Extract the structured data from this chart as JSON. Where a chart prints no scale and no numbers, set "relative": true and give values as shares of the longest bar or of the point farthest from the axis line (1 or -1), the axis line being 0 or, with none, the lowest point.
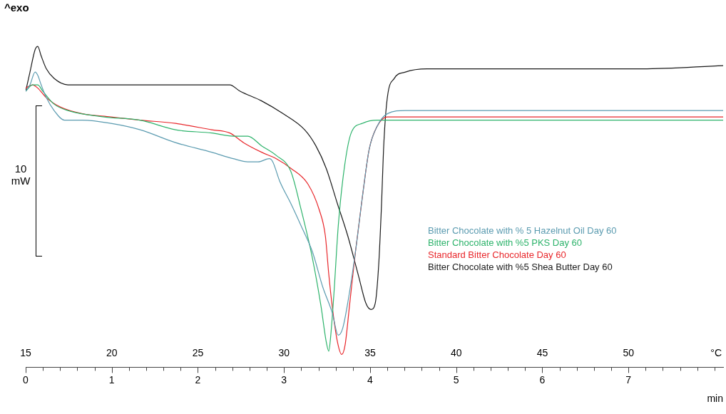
{
  "chart_data": {
    "type": "line",
    "relative": true,
    "xlabel": "min",
    "x2label": "°C",
    "xlim": [
      0,
      8.1
    ],
    "xticks": [
      0,
      {
        "value": 0.2,
        "label": null
      },
      {
        "value": 0.4,
        "label": null
      },
      {
        "value": 0.6,
        "label": null
      },
      {
        "value": 0.8,
        "label": null
      },
      1,
      {
        "value": 1.2,
        "label": null
      },
      {
        "value": 1.4,
        "label": null
      },
      {
        "value": 1.6,
        "label": null
      },
      {
        "value": 1.8,
        "label": null
      },
      2,
      {
        "value": 2.2,
        "label": null
      },
      {
        "value": 2.4,
        "label": null
      },
      {
        "value": 2.6,
        "label": null
      },
      {
        "value": 2.8,
        "label": null
      },
      3,
      {
        "value": 3.2,
        "label": null
      },
      {
        "value": 3.4,
        "label": null
      },
      {
        "value": 3.6,
        "label": null
      },
      {
        "value": 3.8,
        "label": null
      },
      4,
      {
        "value": 4.2,
        "label": null
      },
      {
        "value": 4.4,
        "label": null
      },
      {
        "value": 4.6,
        "label": null
      },
      {
        "value": 4.8,
        "label": null
      },
      5,
      {
        "value": 5.2,
        "label": null
      },
      {
        "value": 5.4,
        "label": null
      },
      {
        "value": 5.6,
        "label": null
      },
      {
        "value": 5.8,
        "label": null
      },
      6,
      {
        "value": 6.2,
        "label": null
      },
      {
        "value": 6.4,
        "label": null
      },
      {
        "value": 6.6,
        "label": null
      },
      {
        "value": 6.8,
        "label": null
      },
      7,
      {
        "value": 7.2,
        "label": null
      },
      {
        "value": 7.4,
        "label": null
      },
      {
        "value": 7.6,
        "label": null
      },
      {
        "value": 7.8,
        "label": null
      },
      {
        "value": 8.0,
        "label": null
      }
    ],
    "x2lim": [
      15,
      55.5
    ],
    "x2ticks": [
      15,
      20,
      25,
      30,
      35,
      40,
      45,
      50
    ],
    "grid": false,
    "legend": "right",
    "marker": "none",
    "line_style": "solid",
    "annotations": [
      "^exo",
      "10 mW"
    ],
    "series": [
      {
        "name": "Bitter Chocolate with % 5 Hazelnut Oil Day 60",
        "color": "#5b9bb0",
        "x": [
          0,
          0.05,
          0.11,
          0.14,
          0.18,
          0.24,
          0.33,
          0.45,
          0.66,
          0.99,
          1.33,
          1.74,
          2.16,
          2.41,
          2.58,
          2.7,
          2.83,
          2.87,
          2.95,
          3.08,
          3.2,
          3.33,
          3.45,
          3.56,
          3.63,
          3.68,
          3.74,
          3.83,
          3.91,
          3.99,
          4.08,
          4.2,
          4.41,
          5.49,
          7.16,
          8.1
        ],
        "values": [
          0.86,
          0.88,
          0.92,
          0.91,
          0.88,
          0.84,
          0.8,
          0.77,
          0.77,
          0.76,
          0.74,
          0.7,
          0.67,
          0.65,
          0.64,
          0.64,
          0.65,
          0.64,
          0.58,
          0.51,
          0.44,
          0.36,
          0.25,
          0.17,
          0.1,
          0.12,
          0.2,
          0.36,
          0.53,
          0.68,
          0.75,
          0.79,
          0.8,
          0.8,
          0.8,
          0.8
        ]
      },
      {
        "name": "Bitter Chocolate with %5 PKS Day 60",
        "color": "#2db36b",
        "x": [
          0,
          0.08,
          0.14,
          0.2,
          0.33,
          0.49,
          0.91,
          1.33,
          1.74,
          2.16,
          2.41,
          2.58,
          2.74,
          2.91,
          3.08,
          3.2,
          3.33,
          3.43,
          3.49,
          3.52,
          3.54,
          3.58,
          3.63,
          3.7,
          3.78,
          3.91,
          4.08,
          4.66,
          6.33,
          8.1
        ],
        "values": [
          0.86,
          0.88,
          0.88,
          0.86,
          0.82,
          0.8,
          0.78,
          0.77,
          0.74,
          0.73,
          0.72,
          0.72,
          0.69,
          0.66,
          0.61,
          0.49,
          0.34,
          0.19,
          0.08,
          0.05,
          0.09,
          0.23,
          0.44,
          0.62,
          0.73,
          0.76,
          0.77,
          0.77,
          0.77,
          0.77
        ]
      },
      {
        "name": "Standard Bitter Chocolate Day 60",
        "color": "#e8262a",
        "x": [
          0,
          0.08,
          0.14,
          0.24,
          0.41,
          0.66,
          0.99,
          1.33,
          1.74,
          2.16,
          2.37,
          2.53,
          2.74,
          2.91,
          3.08,
          3.28,
          3.41,
          3.48,
          3.52,
          3.56,
          3.62,
          3.67,
          3.71,
          3.76,
          3.83,
          3.91,
          3.99,
          4.08,
          4.2,
          4.66,
          6.33,
          8.1
        ],
        "values": [
          0.87,
          0.88,
          0.87,
          0.84,
          0.81,
          0.79,
          0.78,
          0.77,
          0.76,
          0.74,
          0.73,
          0.7,
          0.67,
          0.65,
          0.62,
          0.57,
          0.49,
          0.41,
          0.29,
          0.19,
          0.08,
          0.04,
          0.07,
          0.19,
          0.36,
          0.53,
          0.68,
          0.75,
          0.78,
          0.78,
          0.78,
          0.78
        ]
      },
      {
        "name": "Bitter Chocolate with %5 Shea Butter Day 60",
        "color": "#1a1a1a",
        "x": [
          0,
          0.05,
          0.11,
          0.14,
          0.18,
          0.24,
          0.33,
          0.49,
          0.91,
          1.33,
          1.74,
          2.16,
          2.37,
          2.49,
          2.74,
          2.99,
          3.24,
          3.37,
          3.49,
          3.62,
          3.74,
          3.87,
          3.95,
          4.01,
          4.06,
          4.1,
          4.13,
          4.16,
          4.2,
          4.28,
          4.41,
          4.66,
          5.49,
          6.33,
          7.16,
          8.1
        ],
        "values": [
          0.86,
          0.92,
          0.99,
          1,
          0.97,
          0.93,
          0.9,
          0.88,
          0.88,
          0.88,
          0.88,
          0.88,
          0.88,
          0.86,
          0.83,
          0.79,
          0.74,
          0.69,
          0.62,
          0.51,
          0.41,
          0.28,
          0.2,
          0.18,
          0.2,
          0.32,
          0.49,
          0.7,
          0.84,
          0.9,
          0.92,
          0.93,
          0.93,
          0.93,
          0.93,
          0.94
        ]
      }
    ]
  }
}
